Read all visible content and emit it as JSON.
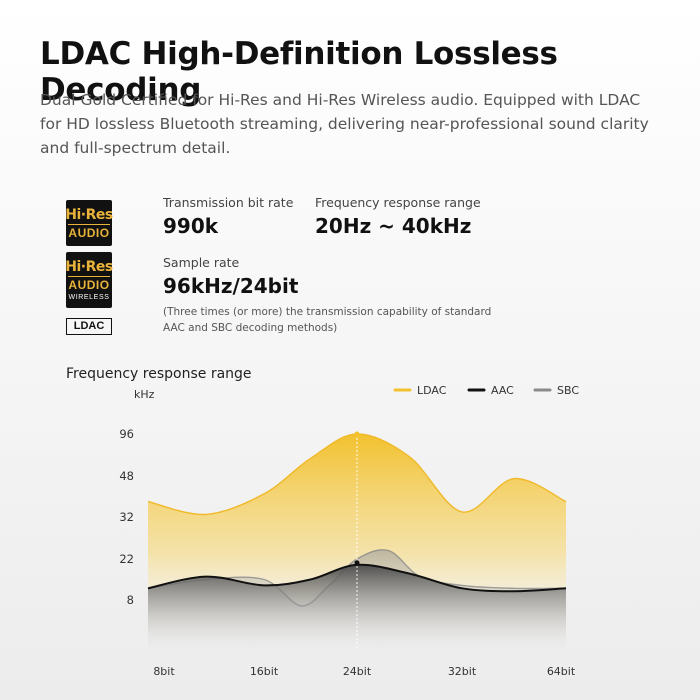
{
  "heading": "LDAC High-Definition Lossless Decoding",
  "description": "Dual Gold Certified for Hi-Res and Hi-Res Wireless audio. Equipped with LDAC for HD lossless Bluetooth streaming, delivering near-professional sound clarity and full-spectrum detail.",
  "logos": {
    "hires_top": "Hi·Res",
    "hires_mid": "AUDIO",
    "wireless_text": "WIRELESS",
    "ldac": "LDAC"
  },
  "specs": {
    "bitrate": {
      "label": "Transmission bit rate",
      "value": "990k"
    },
    "frequency": {
      "label": "Frequency response range",
      "value": "20Hz ~ 40kHz"
    },
    "sample": {
      "label": "Sample rate",
      "value": "96kHz/24bit",
      "note": "(Three times (or more) the transmission capability of standard AAC and SBC decoding methods)"
    }
  },
  "chart_data": {
    "type": "area",
    "title": "Frequency response range",
    "ylabel": "kHz",
    "xlabel": "",
    "categories": [
      "8bit",
      "16bit",
      "24bit",
      "32bit",
      "64bit"
    ],
    "yticks": [
      "96",
      "48",
      "32",
      "22",
      "8"
    ],
    "grid": false,
    "legend_position": "top-right",
    "series": [
      {
        "name": "LDAC",
        "color": "#f2c12e",
        "points": [
          [
            0,
            38
          ],
          [
            0.5,
            33
          ],
          [
            1,
            41
          ],
          [
            1.5,
            68
          ],
          [
            2,
            96
          ],
          [
            2.5,
            70
          ],
          [
            3,
            34
          ],
          [
            3.5,
            47
          ],
          [
            4,
            38
          ]
        ]
      },
      {
        "name": "AAC",
        "color": "#111111",
        "points": [
          [
            0,
            12
          ],
          [
            0.5,
            16
          ],
          [
            1,
            13
          ],
          [
            1.5,
            15
          ],
          [
            2,
            20
          ],
          [
            2.5,
            17
          ],
          [
            3,
            12
          ],
          [
            3.5,
            11
          ],
          [
            4,
            12
          ]
        ]
      },
      {
        "name": "SBC",
        "color": "#8a8a8a",
        "points": [
          [
            0,
            12
          ],
          [
            0.5,
            15
          ],
          [
            1,
            15
          ],
          [
            1.4,
            6
          ],
          [
            1.7,
            13
          ],
          [
            2,
            22
          ],
          [
            2.3,
            24
          ],
          [
            2.6,
            16
          ],
          [
            3,
            13
          ],
          [
            3.5,
            12
          ],
          [
            4,
            12
          ]
        ]
      }
    ],
    "highlight": {
      "category": "24bit",
      "value": 96
    }
  }
}
